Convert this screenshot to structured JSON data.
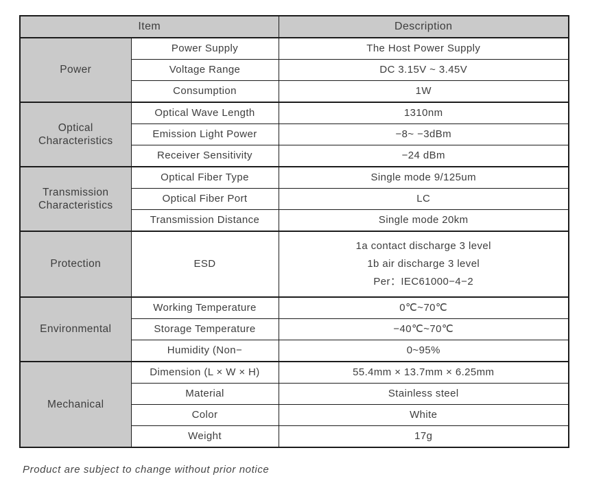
{
  "table": {
    "header": {
      "item": "Item",
      "description": "Description"
    },
    "colors": {
      "header_bg": "#cacaca",
      "category_bg": "#cacaca",
      "border": "#1b1b1b",
      "text": "#3d3d3d",
      "page_bg": "#ffffff"
    },
    "groups": [
      {
        "category": "Power",
        "rows": [
          {
            "param": "Power Supply",
            "desc": "The Host Power Supply"
          },
          {
            "param": "Voltage Range",
            "desc": "DC 3.15V ~ 3.45V"
          },
          {
            "param": "Consumption",
            "desc": "1W"
          }
        ]
      },
      {
        "category": "Optical Characteristics",
        "rows": [
          {
            "param": "Optical Wave Length",
            "desc": "1310nm"
          },
          {
            "param": "Emission Light Power",
            "desc": "−8~ −3dBm"
          },
          {
            "param": "Receiver Sensitivity",
            "desc": "−24 dBm"
          }
        ]
      },
      {
        "category": "Transmission Characteristics",
        "rows": [
          {
            "param": "Optical Fiber Type",
            "desc": "Single mode 9/125um"
          },
          {
            "param": "Optical Fiber Port",
            "desc": "LC"
          },
          {
            "param": "Transmission Distance",
            "desc": "Single mode 20km"
          }
        ]
      },
      {
        "category": "Protection",
        "rows": [
          {
            "param": "ESD",
            "desc": [
              "1a  contact discharge 3 level",
              "1b  air discharge 3 level",
              "Per：IEC61000−4−2"
            ]
          }
        ]
      },
      {
        "category": "Environmental",
        "rows": [
          {
            "param": "Working Temperature",
            "desc": "0℃~70℃"
          },
          {
            "param": "Storage Temperature",
            "desc": "−40℃~70℃"
          },
          {
            "param": "Humidity (Non−",
            "desc": "0~95%"
          }
        ]
      },
      {
        "category": "Mechanical",
        "rows": [
          {
            "param": "Dimension (L × W × H)",
            "desc": "55.4mm × 13.7mm × 6.25mm"
          },
          {
            "param": "Material",
            "desc": "Stainless steel"
          },
          {
            "param": "Color",
            "desc": "White"
          },
          {
            "param": "Weight",
            "desc": "17g"
          }
        ]
      }
    ]
  },
  "footer": {
    "note": "Product are subject to change without prior notice"
  }
}
